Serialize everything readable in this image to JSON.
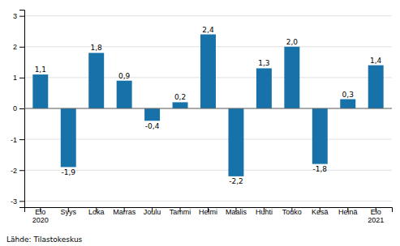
{
  "chart_data": {
    "type": "bar",
    "categories": [
      "Elo\n2020",
      "Syys",
      "Loka",
      "Marras",
      "Joulu",
      "Tammi",
      "Helmi",
      "Maalis",
      "Huhti",
      "Touko",
      "Kesä",
      "Heinä",
      "Elo\n2021"
    ],
    "values": [
      1.1,
      -1.9,
      1.8,
      0.9,
      -0.4,
      0.2,
      2.4,
      -2.2,
      1.3,
      2.0,
      -1.8,
      0.3,
      1.4
    ],
    "value_labels": [
      "1,1",
      "-1,9",
      "1,8",
      "0,9",
      "-0,4",
      "0,2",
      "2,4",
      "-2,2",
      "1,3",
      "2,0",
      "-1,8",
      "0,3",
      "1,4"
    ],
    "color": "#1872AA",
    "ylim": [
      -3.2,
      3.2
    ],
    "yticks": [
      -3,
      -2,
      -1,
      0,
      1,
      2,
      3
    ],
    "grid": true,
    "data_labels": true,
    "annotations": [
      "Lähde: Tilastokeskus"
    ]
  }
}
